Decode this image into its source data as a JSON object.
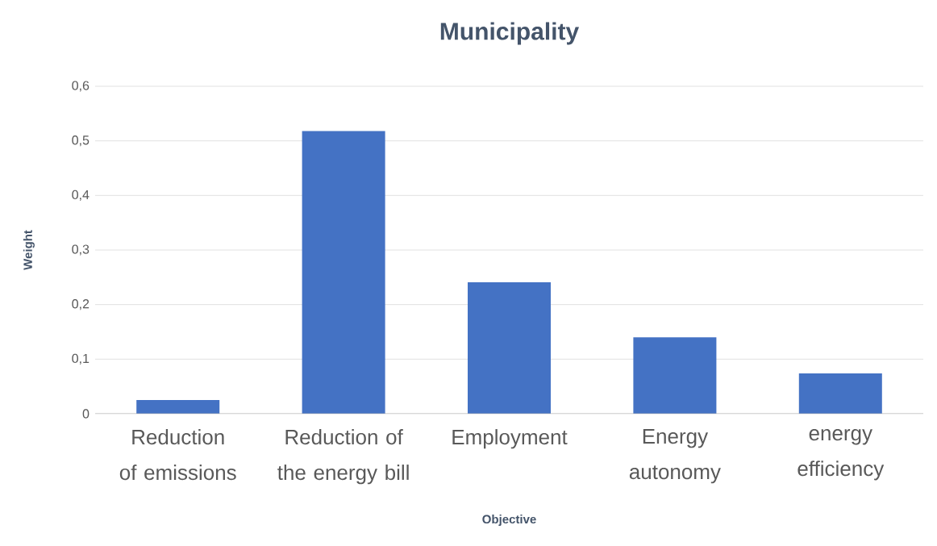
{
  "chart_data": {
    "type": "bar",
    "title": "Municipality",
    "xlabel": "Objective",
    "ylabel": "Weight",
    "categories": [
      "Reduction of emissions",
      "Reduction of the energy bill",
      "Employment",
      "Energy autonomy",
      "energy efficiency"
    ],
    "values": [
      0.025,
      0.518,
      0.241,
      0.14,
      0.074
    ],
    "color": "#4472c4",
    "ylim": [
      0,
      0.6
    ],
    "yticks": [
      0,
      {
        "value": 0.1,
        "label": "0,1"
      },
      {
        "value": 0.2,
        "label": "0,2"
      },
      {
        "value": 0.3,
        "label": "0,3"
      },
      {
        "value": 0.4,
        "label": "0,4"
      },
      {
        "value": 0.5,
        "label": "0,5"
      },
      {
        "value": 0.6,
        "label": "0,6"
      }
    ],
    "grid": "y"
  }
}
